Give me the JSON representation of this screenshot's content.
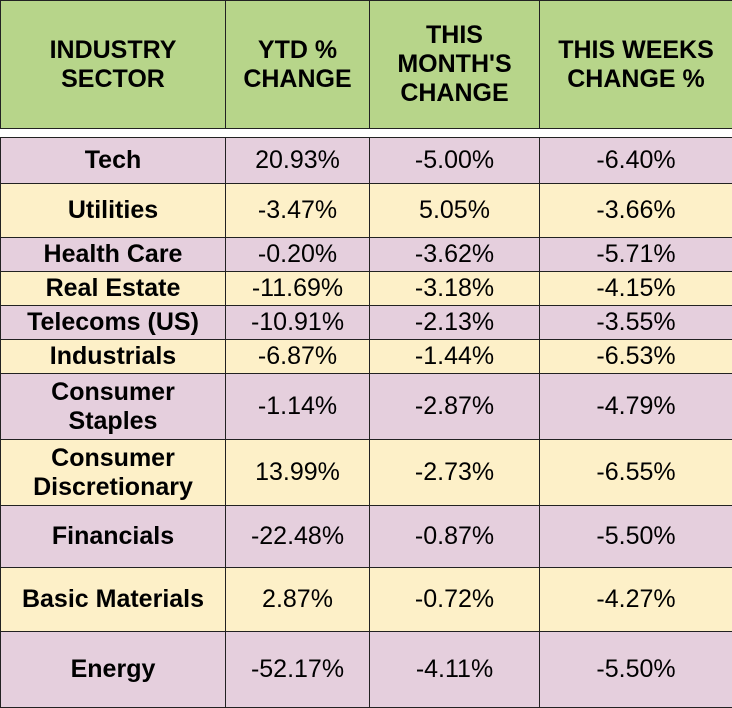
{
  "table": {
    "headers": [
      "INDUSTRY\nSECTOR",
      "YTD %\nCHANGE",
      "THIS\nMONTH'S\nCHANGE",
      "THIS WEEKS\nCHANGE %"
    ],
    "rows": [
      {
        "sector": "Tech",
        "ytd": "20.93%",
        "month": "-5.00%",
        "week": "-6.40%"
      },
      {
        "sector": "Utilities",
        "ytd": "-3.47%",
        "month": "5.05%",
        "week": "-3.66%"
      },
      {
        "sector": "Health Care",
        "ytd": "-0.20%",
        "month": "-3.62%",
        "week": "-5.71%"
      },
      {
        "sector": "Real Estate",
        "ytd": "-11.69%",
        "month": "-3.18%",
        "week": "-4.15%"
      },
      {
        "sector": "Telecoms (US)",
        "ytd": "-10.91%",
        "month": "-2.13%",
        "week": "-3.55%"
      },
      {
        "sector": "Industrials",
        "ytd": "-6.87%",
        "month": "-1.44%",
        "week": "-6.53%"
      },
      {
        "sector": "Consumer\nStaples",
        "ytd": "-1.14%",
        "month": "-2.87%",
        "week": "-4.79%"
      },
      {
        "sector": "Consumer\nDiscretionary",
        "ytd": "13.99%",
        "month": "-2.73%",
        "week": "-6.55%"
      },
      {
        "sector": "Financials",
        "ytd": "-22.48%",
        "month": "-0.87%",
        "week": "-5.50%"
      },
      {
        "sector": "Basic Materials",
        "ytd": "2.87%",
        "month": "-0.72%",
        "week": "-4.27%"
      },
      {
        "sector": "Energy",
        "ytd": "-52.17%",
        "month": "-4.11%",
        "week": "-5.50%"
      }
    ]
  },
  "colors": {
    "header_bg": "#b7d58a",
    "row_lilac": "#e5cfdd",
    "row_cream": "#fdf0c8",
    "border": "#222222"
  }
}
